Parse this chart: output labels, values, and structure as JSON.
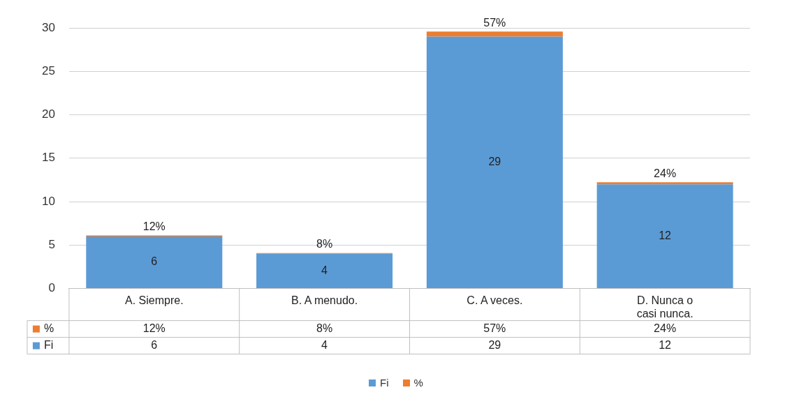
{
  "chart_data": {
    "type": "bar",
    "stacked": true,
    "categories": [
      "A. Siempre.",
      "B. A menudo.",
      "C. A veces.",
      "D. Nunca o casi nunca."
    ],
    "series": [
      {
        "name": "Fi",
        "color": "#5b9bd5",
        "values": [
          6,
          4,
          29,
          12
        ],
        "value_labels": [
          "6",
          "4",
          "29",
          "12"
        ]
      },
      {
        "name": "%",
        "color": "#ed7d31",
        "values": [
          0.12,
          0.08,
          0.57,
          0.24
        ],
        "value_labels": [
          "12%",
          "8%",
          "57%",
          "24%"
        ]
      }
    ],
    "ylim": [
      0,
      30
    ],
    "yticks": [
      0,
      5,
      10,
      15,
      20,
      25,
      30
    ],
    "grid": "y",
    "legend": "bottom"
  }
}
